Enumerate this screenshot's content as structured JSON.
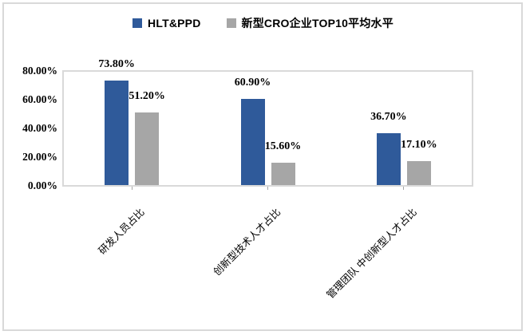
{
  "chart_data": {
    "type": "bar",
    "title": "",
    "categories": [
      "研发人员占比",
      "创新型技术人才占比",
      "管理团队 中创新型人才占比"
    ],
    "series": [
      {
        "name": "HLT&PPD",
        "color": "#2F5A9A",
        "values": [
          73.8,
          60.9,
          36.7
        ],
        "labels": [
          "73.80%",
          "60.90%",
          "36.70%"
        ]
      },
      {
        "name": "新型CRO企业TOP10平均水平",
        "color": "#A6A6A6",
        "values": [
          51.2,
          15.6,
          17.1
        ],
        "labels": [
          "51.20%",
          "15.60%",
          "17.10%"
        ]
      }
    ],
    "y_axis": {
      "ticks": [
        "80.00%",
        "60.00%",
        "40.00%",
        "20.00%",
        "0.00%"
      ],
      "min": 0,
      "max": 80,
      "tick_step": 20,
      "unit": "percent"
    },
    "xlabel": "",
    "ylabel": "",
    "legend_position": "top",
    "grid": false,
    "frame_color": "#D9D9D9",
    "background": "#FFFFFF"
  }
}
